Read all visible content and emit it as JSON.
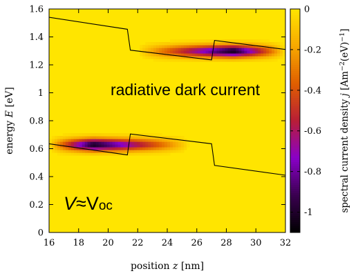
{
  "chart_data": {
    "type": "heatmap",
    "title": "",
    "xlabel": "position z [nm]",
    "xlabel_parts": {
      "before": "position ",
      "var": "z",
      "after": " [nm]"
    },
    "ylabel": "energy E [eV]",
    "ylabel_parts": {
      "before": "energy ",
      "var": "E",
      "after": " [eV]"
    },
    "xlim": [
      16,
      32
    ],
    "ylim": [
      0,
      1.6
    ],
    "x_ticks": [
      16,
      18,
      20,
      22,
      24,
      26,
      28,
      30,
      32
    ],
    "y_ticks": [
      0,
      0.2,
      0.4,
      0.6,
      0.8,
      1,
      1.2,
      1.4,
      1.6
    ],
    "colorbar": {
      "label": "spectral current density j [Am^-2(eV)^-1]",
      "label_parts": {
        "before": "spectral current density ",
        "var": "j",
        "after": " [Am",
        "sup1": "−2",
        "mid": "(eV)",
        "sup2": "−1",
        "end": "]"
      },
      "range": [
        -1.1,
        0
      ],
      "ticks": [
        0,
        -0.2,
        -0.4,
        -0.6,
        -0.8,
        -1
      ],
      "tick_labels": [
        "0",
        "-0.2",
        "-0.4",
        "-0.6",
        "-0.8",
        "-1"
      ],
      "colormap": [
        "#ffe500",
        "#f7a800",
        "#e05f00",
        "#b81e36",
        "#8a00c8",
        "#3a0050",
        "#000000"
      ]
    },
    "annotations": {
      "main": "radiative dark current",
      "voltage": {
        "v": "V",
        "approx": "≈",
        "vo": "V",
        "sub": "oc"
      }
    },
    "band_edges": [
      {
        "name": "conduction band edge",
        "points": [
          [
            16,
            1.54
          ],
          [
            21.3,
            1.455
          ],
          [
            21.5,
            1.305
          ],
          [
            27.0,
            1.235
          ],
          [
            27.2,
            1.375
          ],
          [
            32,
            1.31
          ]
        ]
      },
      {
        "name": "valence band edge",
        "points": [
          [
            16,
            0.635
          ],
          [
            21.3,
            0.555
          ],
          [
            21.5,
            0.705
          ],
          [
            27.0,
            0.635
          ],
          [
            27.2,
            0.48
          ],
          [
            32,
            0.41
          ]
        ]
      }
    ],
    "intensity_lobes": [
      {
        "band": "upper",
        "x_peak": 28.5,
        "x_range": [
          22.0,
          32.0
        ],
        "e_center": 1.3,
        "e_width": 0.03,
        "peak_value": -1.05
      },
      {
        "band": "lower",
        "x_peak": 19.0,
        "x_range": [
          16.0,
          25.5
        ],
        "e_center": 0.63,
        "e_width": 0.03,
        "peak_value": -1.05
      }
    ]
  }
}
